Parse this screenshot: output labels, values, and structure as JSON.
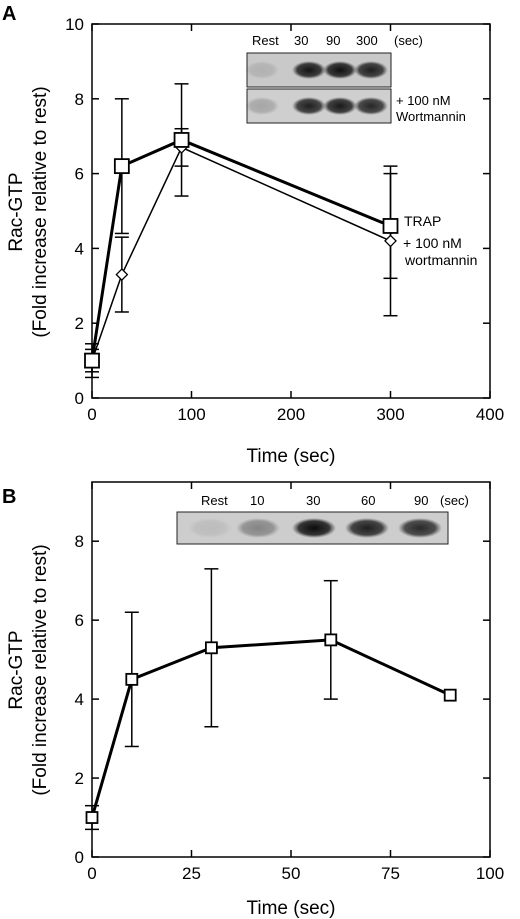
{
  "chart_data": [
    {
      "panel": "A",
      "type": "line",
      "xlabel": "Time (sec)",
      "ylabel_line1": "Rac-GTP",
      "ylabel_line2": "(Fold increase relative to rest)",
      "xlim": [
        0,
        400
      ],
      "ylim": [
        0,
        10
      ],
      "xticks": [
        0,
        100,
        200,
        300,
        400
      ],
      "yticks": [
        0,
        2,
        4,
        6,
        8,
        10
      ],
      "series": [
        {
          "name": "TRAP",
          "marker": "square",
          "x": [
            0,
            30,
            90,
            300
          ],
          "y": [
            1.0,
            6.2,
            6.9,
            4.6
          ],
          "err": [
            0.45,
            1.8,
            1.5,
            1.4
          ]
        },
        {
          "name": "+ 100 nM wortmannin",
          "marker": "diamond",
          "x": [
            0,
            30,
            90,
            300
          ],
          "y": [
            1.0,
            3.3,
            6.7,
            4.2
          ],
          "err": [
            0.3,
            1.0,
            0.5,
            2.0
          ]
        }
      ],
      "legend": {
        "trap": "TRAP",
        "wort_line1": "+ 100 nM",
        "wort_line2": "wortmannin"
      },
      "blot": {
        "headers": [
          "Rest",
          "30",
          "90",
          "300",
          "(sec)"
        ],
        "row2_line1": "+ 100 nM",
        "row2_line2": "Wortmannin",
        "row1_intensity": [
          0.12,
          0.9,
          0.92,
          0.85
        ],
        "row2_intensity": [
          0.2,
          0.85,
          0.88,
          0.82
        ]
      }
    },
    {
      "panel": "B",
      "type": "line",
      "xlabel": "Time (sec)",
      "ylabel_line1": "Rac-GTP",
      "ylabel_line2": "(Fold increase relative to rest)",
      "xlim": [
        0,
        100
      ],
      "ylim": [
        0,
        9.5
      ],
      "xticks": [
        0,
        25,
        50,
        75,
        100
      ],
      "yticks": [
        0,
        2,
        4,
        6,
        8
      ],
      "series": [
        {
          "marker": "square",
          "x": [
            0,
            10,
            30,
            60,
            90
          ],
          "y": [
            1.0,
            4.5,
            5.3,
            5.5,
            4.1
          ],
          "err": [
            0.3,
            1.7,
            2.0,
            1.5,
            null
          ]
        }
      ],
      "blot": {
        "headers": [
          "Rest",
          "10",
          "30",
          "60",
          "90",
          "(sec)"
        ],
        "row1_intensity": [
          0.08,
          0.35,
          0.95,
          0.85,
          0.8
        ]
      }
    }
  ]
}
